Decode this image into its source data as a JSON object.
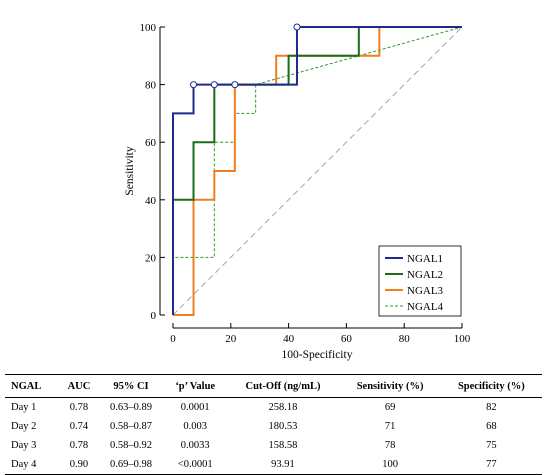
{
  "chart_data": {
    "type": "line",
    "xlabel": "100-Specificity",
    "ylabel": "Sensitivity",
    "xlim": [
      0,
      100
    ],
    "ylim": [
      0,
      100
    ],
    "xticks": [
      0,
      20,
      40,
      60,
      80,
      100
    ],
    "yticks": [
      0,
      20,
      40,
      60,
      80,
      100
    ],
    "xtick_labels": [
      "0",
      "20",
      "40",
      "60",
      "80",
      "100"
    ],
    "ytick_labels": [
      "0",
      "20",
      "40",
      "60",
      "80",
      "100"
    ],
    "grid": false,
    "legend_position": "bottom-right",
    "diagonal_reference": [
      [
        0,
        0
      ],
      [
        100,
        100
      ]
    ],
    "series": [
      {
        "name": "NGAL1",
        "color": "#1f2a8c",
        "dashed": false,
        "x": [
          0,
          0,
          7.1,
          7.1,
          42.9,
          42.9,
          100
        ],
        "y": [
          0,
          70,
          70,
          80,
          80,
          100,
          100
        ],
        "markers": [
          [
            7.1,
            80
          ],
          [
            14.3,
            80
          ],
          [
            21.4,
            80
          ],
          [
            42.9,
            100
          ]
        ]
      },
      {
        "name": "NGAL2",
        "color": "#1a6b1a",
        "dashed": false,
        "x": [
          0,
          0,
          7.1,
          7.1,
          14.3,
          14.3,
          40,
          40,
          64.3,
          64.3,
          100
        ],
        "y": [
          0,
          40,
          40,
          60,
          60,
          80,
          80,
          90,
          90,
          100,
          100
        ],
        "markers": []
      },
      {
        "name": "NGAL3",
        "color": "#f07f1e",
        "dashed": false,
        "x": [
          0,
          7.1,
          7.1,
          14.3,
          14.3,
          21.4,
          21.4,
          35.7,
          35.7,
          71.4,
          71.4,
          100
        ],
        "y": [
          0,
          0,
          40,
          40,
          50,
          50,
          80,
          80,
          90,
          90,
          100,
          100
        ],
        "markers": []
      },
      {
        "name": "NGAL4",
        "color": "#2e9a2e",
        "dashed": true,
        "x": [
          0,
          0,
          14.3,
          14.3,
          21.4,
          21.4,
          28.6,
          28.6,
          100
        ],
        "y": [
          0,
          20,
          20,
          60,
          60,
          70,
          70,
          80,
          100
        ],
        "markers": []
      }
    ]
  },
  "table": {
    "headers": [
      "NGAL",
      "AUC",
      "95% CI",
      "‘p’ Value",
      "Cut-Off (ng/mL)",
      "Sensitivity (%)",
      "Specificity (%)"
    ],
    "rows": [
      [
        "Day 1",
        "0.78",
        "0.63–0.89",
        "0.0001",
        "258.18",
        "69",
        "82"
      ],
      [
        "Day 2",
        "0.74",
        "0.58–0.87",
        "0.003",
        "180.53",
        "71",
        "68"
      ],
      [
        "Day 3",
        "0.78",
        "0.58–0.92",
        "0.0033",
        "158.58",
        "78",
        "75"
      ],
      [
        "Day 4",
        "0.90",
        "0.69–0.98",
        "<0.0001",
        "93.91",
        "100",
        "77"
      ]
    ]
  }
}
